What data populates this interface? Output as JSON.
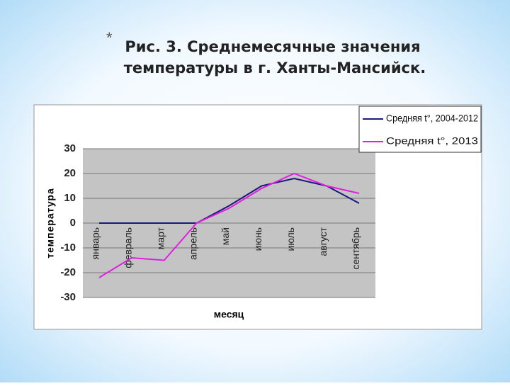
{
  "bullet": "*",
  "title_lines": [
    "Рис. 3. Среднемесячные значения",
    "температуры в г. Ханты-Мансийск."
  ],
  "chart_data": {
    "type": "line",
    "x_label": "месяц",
    "y_label": "температура",
    "categories": [
      "январь",
      "февраль",
      "март",
      "апрель",
      "май",
      "июнь",
      "июль",
      "август",
      "сентябрь"
    ],
    "series": [
      {
        "name": "Средняя t°, 2004-2012",
        "color": "#1a1a7a",
        "values": [
          0,
          0,
          0,
          0,
          7,
          15,
          18,
          15,
          8
        ]
      },
      {
        "name": "Средняя t°, 2013",
        "color": "#e020e0",
        "values": [
          -22,
          -14,
          -15,
          0,
          6,
          14,
          20,
          15,
          12
        ]
      }
    ],
    "ylim": [
      -30,
      30
    ],
    "yticks": [
      -30,
      -20,
      -10,
      0,
      10,
      20,
      30
    ],
    "grid": true,
    "legend": "top-right"
  }
}
